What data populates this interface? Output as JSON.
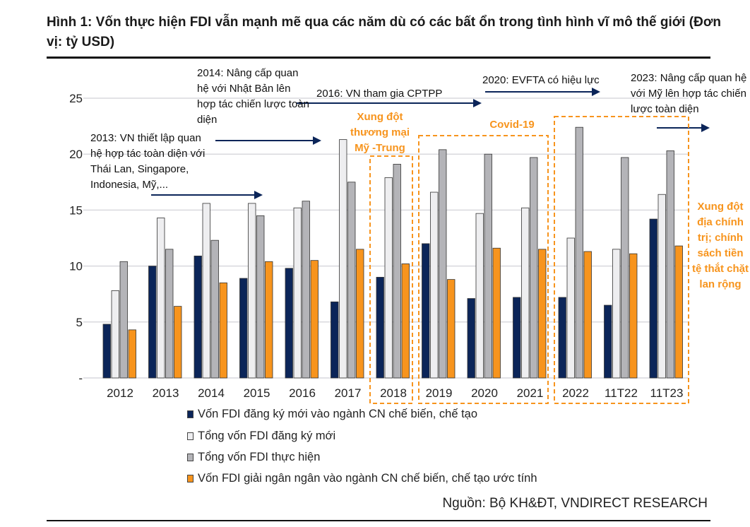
{
  "title": "Hình 1: Vốn thực hiện FDI vẫn mạnh mẽ qua các năm dù có các bất ổn trong tình hình vĩ mô thế giới (Đơn vị: tỷ USD)",
  "source": "Nguồn: Bộ KH&ĐT, VNDIRECT RESEARCH",
  "annotations": {
    "a2013": "2013: VN thiết lập quan hệ hợp tác toàn diện với Thái Lan, Singapore, Indonesia, Mỹ,...",
    "a2014": "2014: Nâng cấp quan hệ với Nhật Bản lên hợp tác chiến lược toàn diện",
    "a2016": "2016: VN tham gia CPTPP",
    "a2020": "2020: EVFTA có hiệu lực",
    "a2023": "2023: Nâng cấp quan hệ với Mỹ lên hợp tác chiến lược toàn diện",
    "trade_war": "Xung đột thương mại Mỹ -Trung",
    "covid": "Covid-19",
    "geopolitics": "Xung đột địa chính trị; chính sách tiền tệ thắt chặt lan rộng"
  },
  "colors": {
    "navy": "#0b2559",
    "white": "#eeeef0",
    "gray": "#b4b4b8",
    "orange": "#f7941d"
  },
  "chart_data": {
    "type": "bar",
    "title": "",
    "categories": [
      "2012",
      "2013",
      "2014",
      "2015",
      "2016",
      "2017",
      "2018",
      "2019",
      "2020",
      "2021",
      "2022",
      "11T22",
      "11T23"
    ],
    "ylim": [
      0,
      25
    ],
    "yticks": [
      0,
      5,
      10,
      15,
      20,
      25
    ],
    "ytick_labels": [
      "-",
      "5",
      "10",
      "15",
      "20",
      "25"
    ],
    "grid": true,
    "legend": "bottom",
    "series": [
      {
        "name": "Vốn FDI đăng ký mới vào ngành CN chế biến, chế tạo",
        "color": "#0b2559",
        "values": [
          4.8,
          10.0,
          10.9,
          8.9,
          9.8,
          6.8,
          9.0,
          12.0,
          7.1,
          7.2,
          7.2,
          6.5,
          14.2
        ]
      },
      {
        "name": "Tổng vốn FDI đăng ký mới",
        "color": "#eeeef0",
        "values": [
          7.8,
          14.3,
          15.6,
          15.6,
          15.2,
          21.3,
          17.9,
          16.6,
          14.7,
          15.2,
          12.5,
          11.5,
          16.4
        ]
      },
      {
        "name": "Tổng vốn FDI thực hiện",
        "color": "#b4b4b8",
        "values": [
          10.4,
          11.5,
          12.3,
          14.5,
          15.8,
          17.5,
          19.1,
          20.4,
          20.0,
          19.7,
          22.4,
          19.7,
          20.3
        ]
      },
      {
        "name": "Vốn FDI giải ngân ngân vào ngành CN chế biến, chế tạo ước tính",
        "color": "#f7941d",
        "values": [
          4.3,
          6.4,
          8.5,
          10.4,
          10.5,
          11.5,
          10.2,
          8.8,
          11.6,
          11.5,
          11.3,
          11.1,
          11.8
        ]
      }
    ]
  }
}
